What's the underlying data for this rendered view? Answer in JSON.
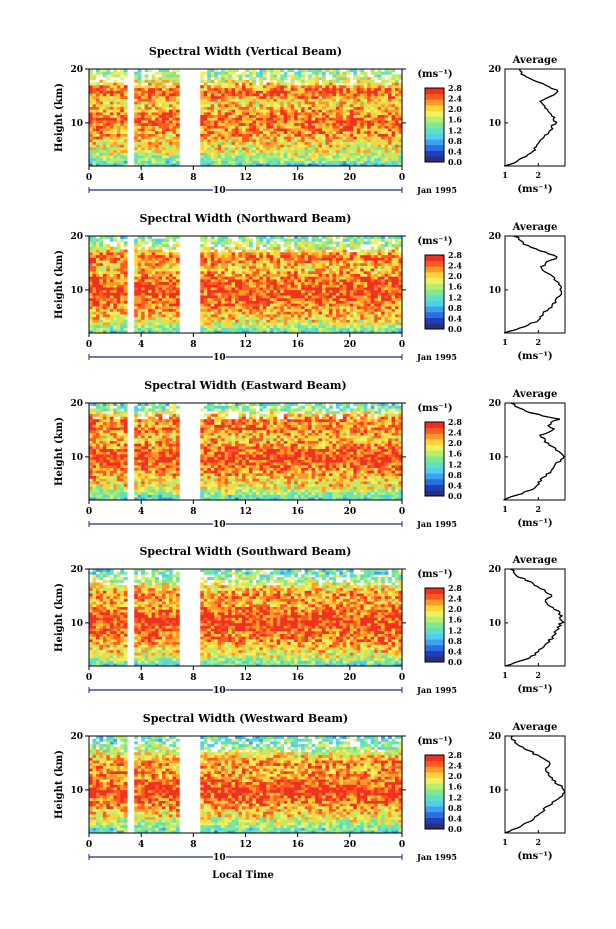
{
  "figure": {
    "xlabel": "Local Time",
    "ylabel": "Height (km)",
    "colorbar_unit": "(ms⁻¹)",
    "date_label": "Jan 1995",
    "day_label": "10"
  },
  "chart_data": [
    {
      "type": "heatmap",
      "title": "Spectral Width (Vertical Beam)",
      "xlabel": "",
      "ylabel": "Height (km)",
      "xlim": [
        0,
        24
      ],
      "ylim": [
        2,
        20
      ],
      "x_ticks": [
        "0",
        "4",
        "8",
        "12",
        "16",
        "20",
        "0"
      ],
      "y_ticks": [
        "10",
        "20"
      ],
      "colorbar": {
        "min": 0.0,
        "max": 2.8,
        "ticks": [
          "2.8",
          "2.4",
          "2.0",
          "1.6",
          "1.2",
          "0.8",
          "0.4",
          "0.0"
        ]
      },
      "data_gaps_hours": [
        [
          3.0,
          3.4
        ],
        [
          6.9,
          8.6
        ]
      ],
      "average_profile": {
        "title": "Average",
        "xlabel": "(ms⁻¹)",
        "x_ticks": [
          "1",
          "2"
        ],
        "y_ticks": [
          "10",
          "20"
        ],
        "height_km": [
          2,
          3,
          4,
          5,
          6,
          7,
          8,
          9,
          10,
          11,
          12,
          13,
          14,
          15,
          16,
          17,
          18,
          19,
          20
        ],
        "value": [
          1.0,
          1.4,
          1.7,
          1.9,
          2.0,
          2.1,
          2.3,
          2.4,
          2.5,
          2.5,
          2.3,
          2.2,
          2.0,
          2.4,
          2.6,
          2.2,
          1.8,
          1.5,
          1.4
        ]
      }
    },
    {
      "type": "heatmap",
      "title": "Spectral Width (Northward Beam)",
      "xlabel": "",
      "ylabel": "Height (km)",
      "xlim": [
        0,
        24
      ],
      "ylim": [
        2,
        20
      ],
      "x_ticks": [
        "0",
        "4",
        "8",
        "12",
        "16",
        "20",
        "0"
      ],
      "y_ticks": [
        "10",
        "20"
      ],
      "colorbar": {
        "min": 0.0,
        "max": 2.8,
        "ticks": [
          "2.8",
          "2.4",
          "2.0",
          "1.6",
          "1.2",
          "0.8",
          "0.4",
          "0.0"
        ]
      },
      "data_gaps_hours": [
        [
          3.0,
          3.4
        ],
        [
          6.9,
          8.6
        ]
      ],
      "average_profile": {
        "title": "Average",
        "xlabel": "(ms⁻¹)",
        "x_ticks": [
          "1",
          "2"
        ],
        "y_ticks": [
          "10",
          "20"
        ],
        "height_km": [
          2,
          3,
          4,
          5,
          6,
          7,
          8,
          9,
          10,
          11,
          12,
          13,
          14,
          15,
          16,
          17,
          18,
          19,
          20
        ],
        "value": [
          1.0,
          1.5,
          1.9,
          2.1,
          2.2,
          2.4,
          2.5,
          2.7,
          2.7,
          2.6,
          2.5,
          2.3,
          2.1,
          2.2,
          2.6,
          2.2,
          1.7,
          1.5,
          1.3
        ]
      }
    },
    {
      "type": "heatmap",
      "title": "Spectral Width (Eastward Beam)",
      "xlabel": "",
      "ylabel": "Height (km)",
      "xlim": [
        0,
        24
      ],
      "ylim": [
        2,
        20
      ],
      "x_ticks": [
        "0",
        "4",
        "8",
        "12",
        "16",
        "20",
        "0"
      ],
      "y_ticks": [
        "10",
        "20"
      ],
      "colorbar": {
        "min": 0.0,
        "max": 2.8,
        "ticks": [
          "2.8",
          "2.4",
          "2.0",
          "1.6",
          "1.2",
          "0.8",
          "0.4",
          "0.0"
        ]
      },
      "data_gaps_hours": [
        [
          3.0,
          3.4
        ],
        [
          6.9,
          8.6
        ]
      ],
      "average_profile": {
        "title": "Average",
        "xlabel": "(ms⁻¹)",
        "x_ticks": [
          "1",
          "2"
        ],
        "y_ticks": [
          "10",
          "20"
        ],
        "height_km": [
          2,
          3,
          4,
          5,
          6,
          7,
          8,
          9,
          10,
          11,
          12,
          13,
          14,
          15,
          16,
          17,
          18,
          19,
          20
        ],
        "value": [
          1.0,
          1.4,
          1.8,
          2.0,
          2.1,
          2.3,
          2.5,
          2.6,
          2.8,
          2.6,
          2.4,
          2.2,
          2.1,
          2.5,
          2.3,
          2.6,
          1.9,
          1.4,
          1.2
        ]
      }
    },
    {
      "type": "heatmap",
      "title": "Spectral Width (Southward Beam)",
      "xlabel": "",
      "ylabel": "Height (km)",
      "xlim": [
        0,
        24
      ],
      "ylim": [
        2,
        20
      ],
      "x_ticks": [
        "0",
        "4",
        "8",
        "12",
        "16",
        "20",
        "0"
      ],
      "y_ticks": [
        "10",
        "20"
      ],
      "colorbar": {
        "min": 0.0,
        "max": 2.8,
        "ticks": [
          "2.8",
          "2.4",
          "2.0",
          "1.6",
          "1.2",
          "0.8",
          "0.4",
          "0.0"
        ]
      },
      "data_gaps_hours": [
        [
          3.0,
          3.4
        ],
        [
          6.9,
          8.6
        ]
      ],
      "average_profile": {
        "title": "Average",
        "xlabel": "(ms⁻¹)",
        "x_ticks": [
          "1",
          "2"
        ],
        "y_ticks": [
          "10",
          "20"
        ],
        "height_km": [
          2,
          3,
          4,
          5,
          6,
          7,
          8,
          9,
          10,
          11,
          12,
          13,
          14,
          15,
          16,
          17,
          18,
          19,
          20
        ],
        "value": [
          1.0,
          1.5,
          1.9,
          2.0,
          2.2,
          2.4,
          2.5,
          2.6,
          2.7,
          2.7,
          2.6,
          2.4,
          2.2,
          2.4,
          2.2,
          1.9,
          1.6,
          1.3,
          1.2
        ]
      }
    },
    {
      "type": "heatmap",
      "title": "Spectral Width (Westward Beam)",
      "xlabel": "Local Time",
      "ylabel": "Height (km)",
      "xlim": [
        0,
        24
      ],
      "ylim": [
        2,
        20
      ],
      "x_ticks": [
        "0",
        "4",
        "8",
        "12",
        "16",
        "20",
        "0"
      ],
      "y_ticks": [
        "10",
        "20"
      ],
      "colorbar": {
        "min": 0.0,
        "max": 2.8,
        "ticks": [
          "2.8",
          "2.4",
          "2.0",
          "1.6",
          "1.2",
          "0.8",
          "0.4",
          "0.0"
        ]
      },
      "data_gaps_hours": [
        [
          3.0,
          3.4
        ],
        [
          6.9,
          8.6
        ]
      ],
      "average_profile": {
        "title": "Average",
        "xlabel": "(ms⁻¹)",
        "x_ticks": [
          "1",
          "2"
        ],
        "y_ticks": [
          "10",
          "20"
        ],
        "height_km": [
          2,
          3,
          4,
          5,
          6,
          7,
          8,
          9,
          10,
          11,
          12,
          13,
          14,
          15,
          16,
          17,
          18,
          19,
          20
        ],
        "value": [
          1.0,
          1.4,
          1.7,
          1.9,
          2.1,
          2.3,
          2.5,
          2.7,
          2.8,
          2.6,
          2.4,
          2.3,
          2.2,
          2.4,
          2.1,
          1.8,
          1.5,
          1.3,
          1.2
        ]
      }
    }
  ],
  "colors": {
    "colormap": [
      "#2b2f7a",
      "#1f3fb8",
      "#2a6fe0",
      "#3fa0f0",
      "#4fd0f0",
      "#60e0c0",
      "#80e890",
      "#b8ee70",
      "#eef060",
      "#ffd23a",
      "#ff9a2a",
      "#ff5a1f",
      "#f03020"
    ]
  }
}
